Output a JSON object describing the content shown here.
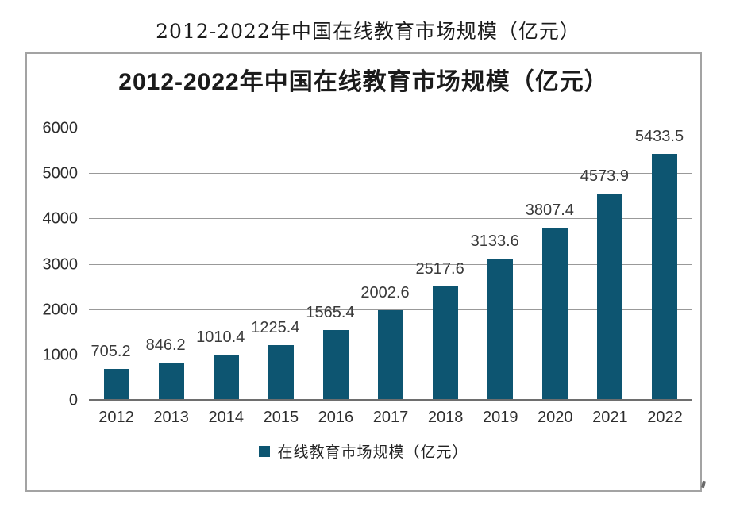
{
  "page": {
    "outer_title": "2012-2022年中国在线教育市场规模（亿元）"
  },
  "chart_data": {
    "type": "bar",
    "title": "2012-2022年中国在线教育市场规模（亿元）",
    "categories": [
      "2012",
      "2013",
      "2014",
      "2015",
      "2016",
      "2017",
      "2018",
      "2019",
      "2020",
      "2021",
      "2022"
    ],
    "series": [
      {
        "name": "在线教育市场规模（亿元）",
        "values": [
          705.2,
          846.2,
          1010.4,
          1225.4,
          1565.4,
          2002.6,
          2517.6,
          3133.6,
          3807.4,
          4573.9,
          5433.5
        ]
      }
    ],
    "legend": [
      "在线教育市场规模（亿元）"
    ],
    "legend_position": "bottom",
    "xlabel": "",
    "ylabel": "",
    "ylim": [
      0,
      6000
    ],
    "yticks": [
      0,
      1000,
      2000,
      3000,
      4000,
      5000,
      6000
    ],
    "grid": true,
    "data_labels": true,
    "colors": {
      "bar": "#0d5571",
      "gridline": "#999999",
      "baseline": "#6e6e6e",
      "label_text": "#3a3a3a"
    }
  }
}
